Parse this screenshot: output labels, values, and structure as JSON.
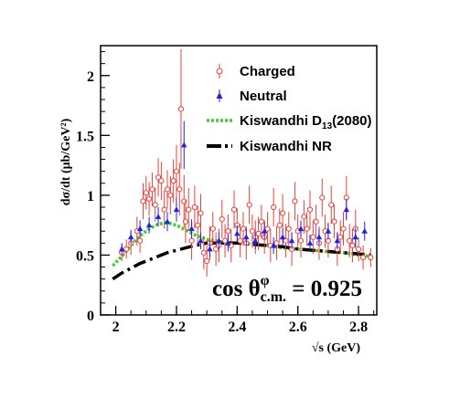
{
  "chart_data": {
    "type": "scatter",
    "xlabel": "√s (GeV)",
    "ylabel": "dσ/dt (μb/GeV²)",
    "xlim": [
      1.95,
      2.86
    ],
    "ylim": [
      0,
      2.25
    ],
    "xticks": [
      "2",
      "2.2",
      "2.4",
      "2.6",
      "2.8"
    ],
    "yticks": [
      "0",
      "0.5",
      "1",
      "1.5",
      "2"
    ],
    "grid": false,
    "legend_position": "top-right",
    "annotation": "cos θ^φ_c.m. = 0.925",
    "annotation_parts": {
      "prefix": "cos θ",
      "superscript": "φ",
      "subscript": "c.m.",
      "suffix": " = 0.925"
    },
    "legend": [
      {
        "label": "Charged",
        "sub": "",
        "tail": "",
        "marker": "open-circle",
        "color": "#e8403a"
      },
      {
        "label": "Neutral",
        "sub": "",
        "tail": "",
        "marker": "filled-triangle",
        "color": "#2222dd"
      },
      {
        "label": "Kiswandhi D",
        "sub": "13",
        "tail": "(2080)",
        "marker": "dotted-line",
        "color": "#44cc33"
      },
      {
        "label": "Kiswandhi NR",
        "sub": "",
        "tail": "",
        "marker": "dash-dot-line",
        "color": "#000000"
      }
    ],
    "series": [
      {
        "name": "Charged",
        "style": "open-circle",
        "color": "#e8403a",
        "x": [
          2.02,
          2.035,
          2.05,
          2.07,
          2.08,
          2.09,
          2.1,
          2.11,
          2.12,
          2.13,
          2.14,
          2.15,
          2.16,
          2.17,
          2.18,
          2.19,
          2.2,
          2.21,
          2.215,
          2.225,
          2.23,
          2.24,
          2.25,
          2.26,
          2.27,
          2.28,
          2.29,
          2.3,
          2.31,
          2.32,
          2.33,
          2.34,
          2.35,
          2.36,
          2.37,
          2.38,
          2.39,
          2.4,
          2.41,
          2.42,
          2.43,
          2.44,
          2.45,
          2.46,
          2.47,
          2.48,
          2.49,
          2.5,
          2.51,
          2.52,
          2.53,
          2.54,
          2.55,
          2.56,
          2.57,
          2.58,
          2.59,
          2.6,
          2.61,
          2.62,
          2.63,
          2.64,
          2.65,
          2.66,
          2.67,
          2.68,
          2.69,
          2.7,
          2.71,
          2.72,
          2.73,
          2.74,
          2.75,
          2.76,
          2.77,
          2.78,
          2.79,
          2.8,
          2.815,
          2.84
        ],
        "y": [
          0.52,
          0.55,
          0.6,
          0.7,
          0.62,
          0.95,
          1.02,
          0.97,
          1.05,
          0.92,
          1.15,
          1.12,
          0.88,
          1.05,
          1.0,
          1.12,
          1.2,
          1.05,
          1.72,
          0.95,
          0.78,
          0.88,
          0.62,
          0.9,
          0.75,
          0.85,
          0.52,
          0.45,
          0.6,
          0.72,
          0.55,
          0.58,
          0.8,
          0.62,
          0.7,
          0.58,
          0.88,
          0.75,
          0.62,
          0.72,
          0.6,
          0.92,
          0.7,
          0.65,
          0.68,
          0.78,
          0.65,
          0.72,
          0.58,
          0.9,
          0.6,
          0.75,
          0.85,
          0.62,
          0.72,
          0.55,
          0.95,
          0.7,
          0.62,
          0.82,
          0.72,
          0.88,
          0.65,
          0.78,
          0.6,
          0.98,
          0.7,
          0.62,
          0.92,
          0.78,
          0.55,
          0.65,
          0.72,
          0.98,
          0.62,
          0.58,
          0.72,
          0.55,
          0.48,
          0.48
        ],
        "yerr": [
          0.07,
          0.08,
          0.1,
          0.12,
          0.1,
          0.15,
          0.14,
          0.14,
          0.14,
          0.14,
          0.16,
          0.16,
          0.16,
          0.16,
          0.16,
          0.18,
          0.22,
          0.22,
          0.5,
          0.22,
          0.18,
          0.18,
          0.16,
          0.18,
          0.16,
          0.16,
          0.14,
          0.13,
          0.14,
          0.14,
          0.14,
          0.14,
          0.16,
          0.14,
          0.14,
          0.14,
          0.16,
          0.14,
          0.14,
          0.14,
          0.14,
          0.16,
          0.14,
          0.14,
          0.14,
          0.14,
          0.14,
          0.14,
          0.14,
          0.16,
          0.14,
          0.14,
          0.16,
          0.14,
          0.14,
          0.14,
          0.16,
          0.14,
          0.14,
          0.14,
          0.14,
          0.16,
          0.14,
          0.14,
          0.14,
          0.16,
          0.14,
          0.14,
          0.16,
          0.14,
          0.14,
          0.14,
          0.14,
          0.18,
          0.14,
          0.14,
          0.16,
          0.1,
          0.1,
          0.08
        ]
      },
      {
        "name": "Neutral",
        "style": "filled-triangle",
        "color": "#2222dd",
        "x": [
          2.02,
          2.05,
          2.08,
          2.11,
          2.14,
          2.17,
          2.2,
          2.225,
          2.25,
          2.28,
          2.31,
          2.34,
          2.37,
          2.4,
          2.43,
          2.46,
          2.49,
          2.52,
          2.55,
          2.58,
          2.61,
          2.64,
          2.67,
          2.7,
          2.73,
          2.76,
          2.79,
          2.82
        ],
        "y": [
          0.55,
          0.65,
          0.72,
          0.75,
          0.82,
          0.78,
          0.88,
          1.42,
          0.72,
          0.62,
          0.55,
          0.62,
          0.6,
          0.68,
          0.65,
          0.62,
          0.7,
          0.58,
          0.65,
          0.62,
          0.72,
          0.6,
          0.65,
          0.7,
          0.62,
          0.88,
          0.65,
          0.7
        ],
        "yerr": [
          0.05,
          0.06,
          0.07,
          0.07,
          0.08,
          0.08,
          0.1,
          0.2,
          0.08,
          0.07,
          0.07,
          0.07,
          0.07,
          0.07,
          0.07,
          0.07,
          0.07,
          0.07,
          0.07,
          0.07,
          0.07,
          0.07,
          0.07,
          0.07,
          0.07,
          0.09,
          0.08,
          0.08
        ]
      },
      {
        "name": "Kiswandhi D13(2080)",
        "style": "dotted-line",
        "color": "#44cc33",
        "x": [
          1.99,
          2.02,
          2.05,
          2.08,
          2.11,
          2.14,
          2.17,
          2.2,
          2.23,
          2.26,
          2.3,
          2.35,
          2.4,
          2.45,
          2.5,
          2.55,
          2.6,
          2.65,
          2.7,
          2.75,
          2.8,
          2.84
        ],
        "y": [
          0.41,
          0.49,
          0.58,
          0.66,
          0.72,
          0.76,
          0.77,
          0.75,
          0.71,
          0.67,
          0.63,
          0.61,
          0.6,
          0.59,
          0.58,
          0.56,
          0.55,
          0.54,
          0.53,
          0.52,
          0.5,
          0.49
        ]
      },
      {
        "name": "Kiswandhi NR",
        "style": "dash-dot-line",
        "color": "#000000",
        "x": [
          1.99,
          2.02,
          2.05,
          2.08,
          2.11,
          2.14,
          2.17,
          2.2,
          2.23,
          2.26,
          2.3,
          2.35,
          2.4,
          2.45,
          2.5,
          2.55,
          2.6,
          2.65,
          2.7,
          2.75,
          2.8,
          2.84
        ],
        "y": [
          0.3,
          0.35,
          0.39,
          0.43,
          0.46,
          0.49,
          0.52,
          0.54,
          0.56,
          0.58,
          0.6,
          0.6,
          0.6,
          0.59,
          0.58,
          0.57,
          0.55,
          0.54,
          0.53,
          0.52,
          0.51,
          0.5
        ]
      }
    ]
  }
}
